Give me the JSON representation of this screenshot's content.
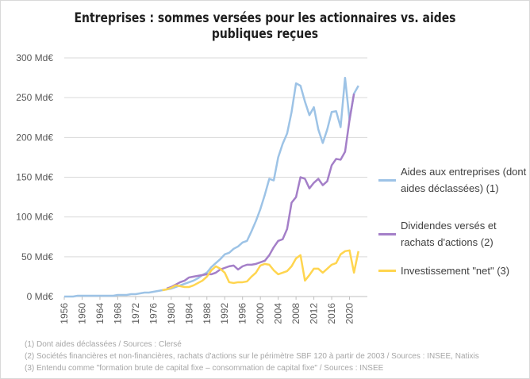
{
  "chart_data": {
    "type": "line",
    "title": "Entreprises : sommes versées pour les actionnaires vs. aides publiques reçues",
    "x": [
      1956,
      1957,
      1958,
      1959,
      1960,
      1961,
      1962,
      1963,
      1964,
      1965,
      1966,
      1967,
      1968,
      1969,
      1970,
      1971,
      1972,
      1973,
      1974,
      1975,
      1976,
      1977,
      1978,
      1979,
      1980,
      1981,
      1982,
      1983,
      1984,
      1985,
      1986,
      1987,
      1988,
      1989,
      1990,
      1991,
      1992,
      1993,
      1994,
      1995,
      1996,
      1997,
      1998,
      1999,
      2000,
      2001,
      2002,
      2003,
      2004,
      2005,
      2006,
      2007,
      2008,
      2009,
      2010,
      2011,
      2012,
      2013,
      2014,
      2015,
      2016,
      2017,
      2018,
      2019,
      2020,
      2021,
      2022
    ],
    "series": [
      {
        "name": "Aides aux entreprises (dont aides déclassées) (1)",
        "color": "#9dc3e6",
        "values": [
          0,
          0,
          0,
          1,
          1,
          1,
          1,
          1,
          1,
          1,
          1,
          1,
          2,
          2,
          2,
          3,
          3,
          4,
          5,
          5,
          6,
          7,
          8,
          9,
          10,
          12,
          14,
          16,
          18,
          20,
          23,
          27,
          30,
          37,
          42,
          47,
          53,
          55,
          60,
          63,
          68,
          70,
          82,
          95,
          110,
          128,
          148,
          146,
          175,
          192,
          205,
          232,
          268,
          265,
          245,
          228,
          238,
          210,
          193,
          210,
          232,
          233,
          213,
          275,
          222,
          255,
          265
        ]
      },
      {
        "name": "Dividendes versés et rachats d'actions (2)",
        "color": "#a47fc8",
        "values": [
          null,
          null,
          null,
          null,
          null,
          null,
          null,
          null,
          null,
          null,
          null,
          null,
          null,
          null,
          null,
          null,
          null,
          null,
          null,
          null,
          null,
          null,
          null,
          10,
          12,
          15,
          18,
          20,
          24,
          25,
          26,
          27,
          28,
          28,
          30,
          34,
          36,
          38,
          39,
          34,
          38,
          40,
          40,
          41,
          43,
          45,
          52,
          62,
          70,
          72,
          85,
          118,
          125,
          150,
          148,
          136,
          143,
          148,
          140,
          145,
          165,
          173,
          172,
          182,
          222,
          255,
          null
        ]
      },
      {
        "name": "Investissement \"net\" (3)",
        "color": "#ffd54f",
        "values": [
          null,
          null,
          null,
          null,
          null,
          null,
          null,
          null,
          null,
          null,
          null,
          null,
          null,
          null,
          null,
          null,
          null,
          null,
          null,
          null,
          null,
          null,
          8,
          9,
          11,
          14,
          13,
          12,
          12,
          14,
          17,
          20,
          25,
          33,
          38,
          35,
          30,
          18,
          17,
          18,
          18,
          19,
          25,
          30,
          39,
          41,
          40,
          33,
          28,
          30,
          32,
          38,
          48,
          52,
          20,
          27,
          35,
          35,
          30,
          35,
          40,
          42,
          53,
          57,
          58,
          30,
          57
        ]
      }
    ],
    "xlim": [
      1956,
      2024
    ],
    "xticks": [
      1956,
      1960,
      1964,
      1968,
      1972,
      1976,
      1980,
      1984,
      1988,
      1992,
      1996,
      2000,
      2004,
      2008,
      2012,
      2016,
      2020
    ],
    "ylim": [
      0,
      300
    ],
    "yticks": [
      {
        "value": 0,
        "label": "0 Md€"
      },
      {
        "value": 50,
        "label": "50 Md€"
      },
      {
        "value": 100,
        "label": "100 Md€"
      },
      {
        "value": 150,
        "label": "150 Md€"
      },
      {
        "value": 200,
        "label": "200 Md€"
      },
      {
        "value": 250,
        "label": "250 Md€"
      },
      {
        "value": 300,
        "label": "300 Md€"
      }
    ],
    "grid": true,
    "legend": "right",
    "notes": [
      "(1) Dont aides déclassées / Sources : Clersé",
      "(2) Sociétés financières et non-financières, rachats d'actions sur le périmètre SBF 120 à partir de 2003 / Sources : INSEE, Natixis",
      "(3) Entendu comme \"formation brute de capital fixe – consommation de capital fixe\" / Sources : INSEE"
    ]
  }
}
